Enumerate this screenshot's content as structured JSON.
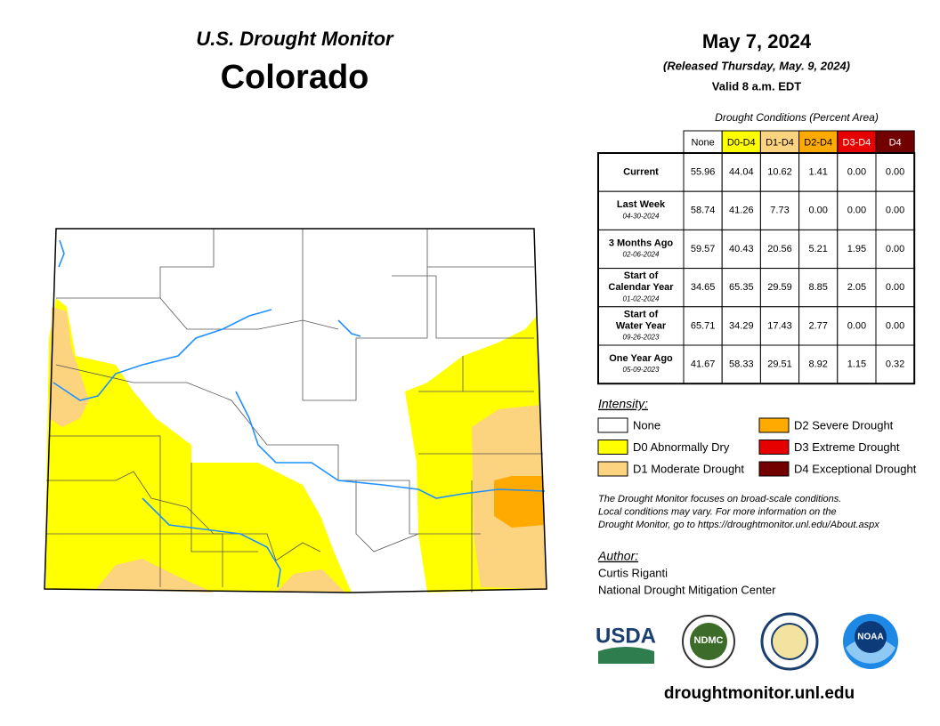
{
  "header": {
    "org": "U.S. Drought Monitor",
    "state": "Colorado"
  },
  "release": {
    "date": "May 7, 2024",
    "released": "(Released Thursday, May. 9, 2024)",
    "valid": "Valid 8 a.m. EDT"
  },
  "table": {
    "caption": "Drought Conditions (Percent Area)",
    "columns": [
      {
        "label": "None",
        "color": "#ffffff",
        "text_color": "#000000"
      },
      {
        "label": "D0-D4",
        "color": "#ffff00",
        "text_color": "#000000"
      },
      {
        "label": "D1-D4",
        "color": "#fcd37f",
        "text_color": "#000000"
      },
      {
        "label": "D2-D4",
        "color": "#ffaa00",
        "text_color": "#000000"
      },
      {
        "label": "D3-D4",
        "color": "#e60000",
        "text_color": "#ffffff"
      },
      {
        "label": "D4",
        "color": "#730000",
        "text_color": "#ffffff"
      }
    ],
    "rows": [
      {
        "label": [
          "Current"
        ],
        "values": [
          "55.96",
          "44.04",
          "10.62",
          "1.41",
          "0.00",
          "0.00"
        ]
      },
      {
        "label": [
          "Last Week"
        ],
        "date": "04-30-2024",
        "values": [
          "58.74",
          "41.26",
          "7.73",
          "0.00",
          "0.00",
          "0.00"
        ]
      },
      {
        "label": [
          "3 Months Ago"
        ],
        "date": "02-06-2024",
        "values": [
          "59.57",
          "40.43",
          "20.56",
          "5.21",
          "1.95",
          "0.00"
        ]
      },
      {
        "label": [
          "Start of",
          "Calendar Year"
        ],
        "date": "01-02-2024",
        "values": [
          "34.65",
          "65.35",
          "29.59",
          "8.85",
          "2.05",
          "0.00"
        ]
      },
      {
        "label": [
          "Start of",
          "Water Year"
        ],
        "date": "09-26-2023",
        "values": [
          "65.71",
          "34.29",
          "17.43",
          "2.77",
          "0.00",
          "0.00"
        ]
      },
      {
        "label": [
          "One Year Ago"
        ],
        "date": "05-09-2023",
        "values": [
          "41.67",
          "58.33",
          "29.51",
          "8.92",
          "1.15",
          "0.32"
        ]
      }
    ]
  },
  "legend": {
    "title": "Intensity:",
    "items": [
      {
        "label": "None",
        "color": "#ffffff"
      },
      {
        "label": "D0 Abnormally Dry",
        "color": "#ffff00"
      },
      {
        "label": "D1 Moderate Drought",
        "color": "#fcd37f"
      },
      {
        "label": "D2 Severe Drought",
        "color": "#ffaa00"
      },
      {
        "label": "D3 Extreme Drought",
        "color": "#e60000"
      },
      {
        "label": "D4 Exceptional Drought",
        "color": "#730000"
      }
    ]
  },
  "notes": [
    "The Drought Monitor focuses on broad-scale conditions.",
    "Local conditions may vary. For more information on the",
    "Drought Monitor, go to https://droughtmonitor.unl.edu/About.aspx"
  ],
  "author": {
    "title": "Author:",
    "name": "Curtis Riganti",
    "organization": "National Drought Mitigation Center"
  },
  "logos": [
    "USDA",
    "NDMC",
    "NOAA"
  ],
  "footer": {
    "url": "droughtmonitor.unl.edu"
  }
}
